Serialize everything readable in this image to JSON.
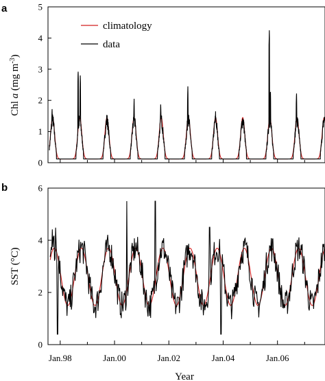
{
  "colors": {
    "climatology": "#d21e1e",
    "data": "#000000",
    "axis": "#000000"
  },
  "x_axis": {
    "title": "Year",
    "range": [
      1997.55,
      2007.75
    ],
    "ticks": [
      {
        "year": 1998,
        "label": "Jan.98"
      },
      {
        "year": 2000,
        "label": "Jan.00"
      },
      {
        "year": 2002,
        "label": "Jan.02"
      },
      {
        "year": 2004,
        "label": "Jan.04"
      },
      {
        "year": 2006,
        "label": "Jan.06"
      }
    ],
    "minor_ticks": [
      1999,
      2001,
      2003,
      2005,
      2007
    ]
  },
  "chart_data": [
    {
      "panel": "a",
      "type": "line",
      "ylabel_main": "Chl ",
      "ylabel_italic": "a",
      "ylabel_unit": " (mg m",
      "ylabel_exp": "-3",
      "ylabel_close": ")",
      "ylim": [
        0,
        5
      ],
      "yticks": [
        0,
        1,
        2,
        3,
        4,
        5
      ],
      "legend": {
        "position": "top-left",
        "entries": [
          "climatology",
          "data"
        ]
      },
      "baseline": 0.12,
      "bloom_peak_climatology": 1.45,
      "series": [
        {
          "name": "climatology",
          "peaks": [
            [
              1997.72,
              1.45
            ],
            [
              1998.72,
              1.45
            ],
            [
              1999.72,
              1.45
            ],
            [
              2000.72,
              1.45
            ],
            [
              2001.72,
              1.45
            ],
            [
              2002.72,
              1.45
            ],
            [
              2003.72,
              1.45
            ],
            [
              2004.72,
              1.45
            ],
            [
              2005.72,
              1.45
            ],
            [
              2006.72,
              1.45
            ]
          ]
        },
        {
          "name": "data",
          "peaks": [
            [
              1997.7,
              1.8
            ],
            [
              1998.66,
              3.0
            ],
            [
              1998.74,
              2.8
            ],
            [
              1999.72,
              1.6
            ],
            [
              2000.72,
              2.05
            ],
            [
              2001.7,
              1.95
            ],
            [
              2002.7,
              2.45
            ],
            [
              2003.72,
              1.65
            ],
            [
              2004.72,
              1.5
            ],
            [
              2005.7,
              4.25
            ],
            [
              2005.74,
              2.35
            ],
            [
              2006.7,
              2.3
            ]
          ]
        }
      ]
    },
    {
      "panel": "b",
      "type": "line",
      "ylabel": "SST (°C)",
      "ylim": [
        0,
        6
      ],
      "yticks": [
        0,
        2,
        4,
        6
      ],
      "series": [
        {
          "name": "climatology",
          "min_value": 1.5,
          "max_value": 3.7
        },
        {
          "name": "data",
          "min_value": 0.4,
          "max_value": 5.5
        }
      ]
    }
  ]
}
